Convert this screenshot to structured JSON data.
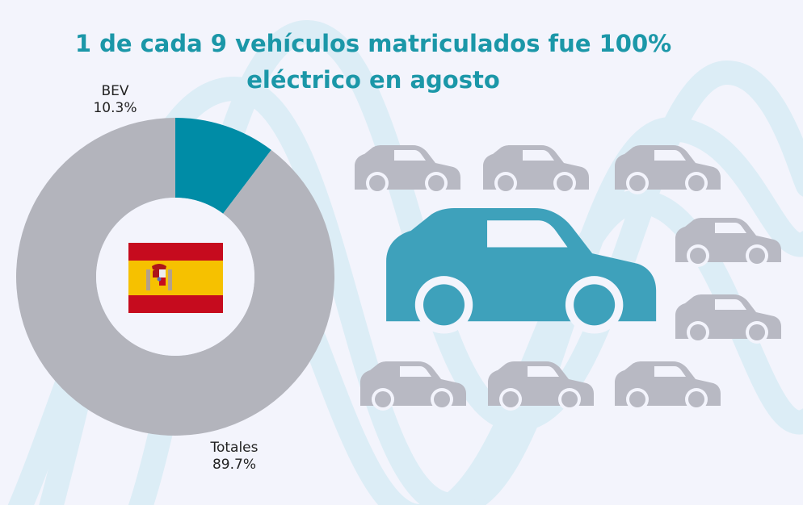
{
  "title": {
    "line1": "1 de cada 9 vehículos matriculados fue 100%",
    "line2": "eléctrico en agosto"
  },
  "chart_data": {
    "type": "pie",
    "categories": [
      "BEV",
      "Totales"
    ],
    "values": [
      10.3,
      89.7
    ],
    "labels": [
      {
        "name": "BEV",
        "value": "10.3%"
      },
      {
        "name": "Totales",
        "value": "89.7%"
      }
    ],
    "colors": [
      "#008ca6",
      "#b3b4bc"
    ],
    "center_icon": "spain-flag-icon"
  },
  "pictogram": {
    "highlight_icon": "electric-car-icon",
    "highlight_color": "#3ea1bb",
    "other_icon": "car-icon",
    "other_color": "#b8b9c3",
    "total": 9,
    "highlighted": 1
  },
  "colors": {
    "background": "#f3f4fc",
    "title": "#1b97a8",
    "wave": "#dcedf6"
  }
}
